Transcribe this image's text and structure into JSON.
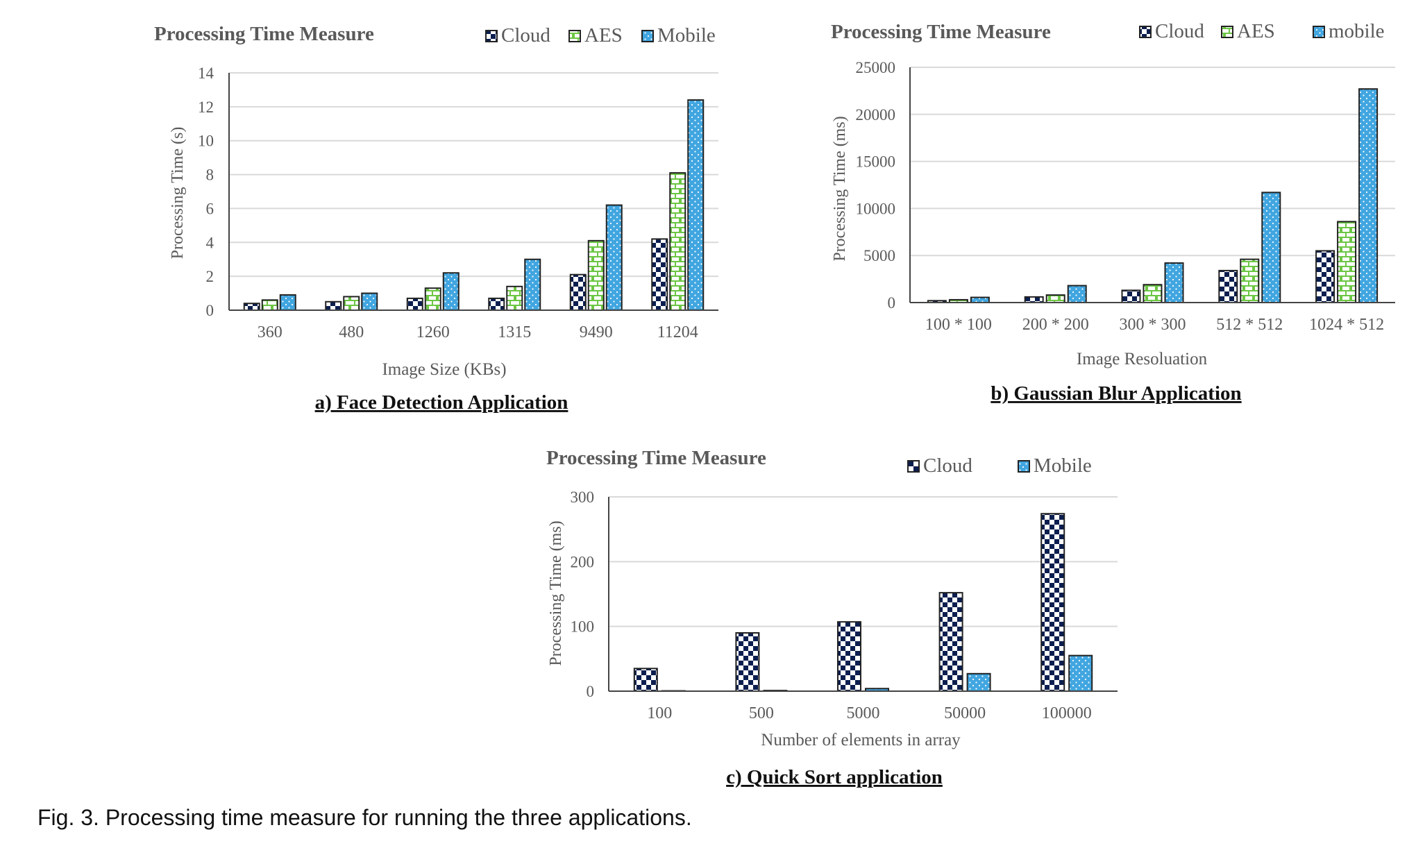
{
  "figure": {
    "caption": "Fig. 3. Processing time measure for running the three applications."
  },
  "styles": {
    "Cloud": {
      "fill": "#0b1e4f",
      "bg": "#ffffff",
      "pattern": "checker"
    },
    "AES": {
      "fill": "#6cc644",
      "bg": "#ffffff",
      "pattern": "brick"
    },
    "Mobile": {
      "fill": "#41a6e0",
      "bg": "#ffffff",
      "pattern": "dots"
    },
    "mobile": {
      "fill": "#41a6e0",
      "bg": "#ffffff",
      "pattern": "dots"
    }
  },
  "chart_data": [
    {
      "id": "face",
      "type": "bar",
      "title": "Processing Time Measure",
      "subtitle": "a) Face Detection Application",
      "xlabel": "Image Size (KBs)",
      "ylabel": "Processing Time (s)",
      "categories": [
        "360",
        "480",
        "1260",
        "1315",
        "9490",
        "11204"
      ],
      "series": [
        {
          "name": "Cloud",
          "values": [
            0.4,
            0.5,
            0.7,
            0.7,
            2.1,
            4.2
          ]
        },
        {
          "name": "AES",
          "values": [
            0.6,
            0.8,
            1.3,
            1.4,
            4.1,
            8.1
          ]
        },
        {
          "name": "Mobile",
          "values": [
            0.9,
            1.0,
            2.2,
            3.0,
            6.2,
            12.4
          ]
        }
      ],
      "ylim": [
        0,
        14
      ],
      "yticks": [
        0,
        2,
        4,
        6,
        8,
        10,
        12,
        14
      ],
      "grid": true,
      "legend": "top-right"
    },
    {
      "id": "blur",
      "type": "bar",
      "title": "Processing Time Measure",
      "subtitle": "b) Gaussian Blur Application",
      "xlabel": "Image Resoluation",
      "ylabel": "Processing Time (ms)",
      "categories": [
        "100 * 100",
        "200 * 200",
        "300 * 300",
        "512 * 512",
        "1024 * 512"
      ],
      "series": [
        {
          "name": "Cloud",
          "values": [
            200,
            600,
            1300,
            3400,
            5500
          ]
        },
        {
          "name": "AES",
          "values": [
            300,
            800,
            1900,
            4600,
            8600
          ]
        },
        {
          "name": "mobile",
          "values": [
            550,
            1800,
            4200,
            11700,
            22700
          ]
        }
      ],
      "ylim": [
        0,
        25000
      ],
      "yticks": [
        0,
        5000,
        10000,
        15000,
        20000,
        25000
      ],
      "grid": true,
      "legend": "top-right"
    },
    {
      "id": "sort",
      "type": "bar",
      "title": "Processing Time Measure",
      "subtitle": "c) Quick Sort application",
      "xlabel": "Number of elements in array",
      "ylabel": "Processing Time (ms)",
      "categories": [
        "100",
        "500",
        "5000",
        "50000",
        "100000"
      ],
      "series": [
        {
          "name": "Cloud",
          "values": [
            35,
            90,
            107,
            152,
            274
          ]
        },
        {
          "name": "Mobile",
          "values": [
            0.5,
            1,
            4,
            27,
            55
          ]
        }
      ],
      "ylim": [
        0,
        300
      ],
      "yticks": [
        0,
        100,
        200,
        300
      ],
      "grid": true,
      "legend": "top-right"
    }
  ]
}
